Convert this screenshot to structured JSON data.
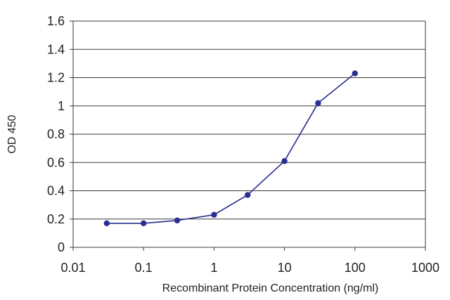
{
  "chart_data": {
    "type": "line",
    "xlabel": "Recombinant Protein Concentration (ng/ml)",
    "ylabel": "OD 450",
    "x_scale": "log",
    "xlim": [
      0.01,
      1000
    ],
    "ylim": [
      0,
      1.6
    ],
    "grid": "horizontal",
    "x_ticks": [
      "0.01",
      "0.1",
      "1",
      "10",
      "100",
      "1000"
    ],
    "y_ticks": [
      "0",
      "0.2",
      "0.4",
      "0.6",
      "0.8",
      "1",
      "1.2",
      "1.4",
      "1.6"
    ],
    "series": [
      {
        "color": "#2b2f8f",
        "x": [
          0.03,
          0.1,
          0.3,
          1,
          3,
          10,
          30,
          100
        ],
        "y": [
          0.17,
          0.17,
          0.19,
          0.23,
          0.37,
          0.61,
          1.02,
          1.23
        ]
      }
    ]
  }
}
